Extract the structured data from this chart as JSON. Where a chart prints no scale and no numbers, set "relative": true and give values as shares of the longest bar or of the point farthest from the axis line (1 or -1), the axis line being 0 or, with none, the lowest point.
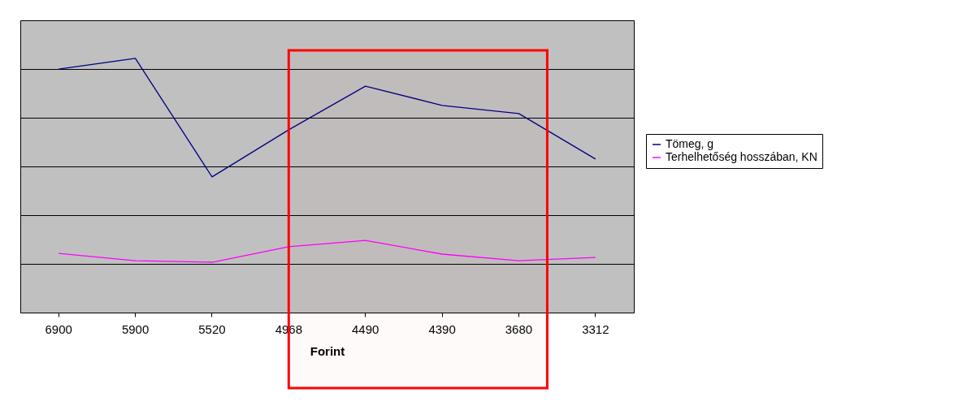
{
  "chart_data": {
    "type": "line",
    "relative": true,
    "xlabel": "Forint",
    "categories": [
      "6900",
      "5900",
      "5520",
      "4968",
      "4490",
      "4390",
      "3680",
      "3312"
    ],
    "series": [
      {
        "name": "Tömeg, g",
        "color": "#000080",
        "values": [
          0.958,
          1,
          0.534,
          0.719,
          0.891,
          0.815,
          0.783,
          0.604
        ]
      },
      {
        "name": "Terhelhetőség hosszában, KN",
        "color": "#ff00ff",
        "values": [
          0.233,
          0.204,
          0.198,
          0.259,
          0.284,
          0.23,
          0.204,
          0.217
        ]
      }
    ],
    "bands": [
      {
        "axis": "x",
        "from": "4968",
        "to": "3680",
        "color": "#ff0000"
      }
    ],
    "grid": "y",
    "legend": "right",
    "line_style": "solid"
  }
}
